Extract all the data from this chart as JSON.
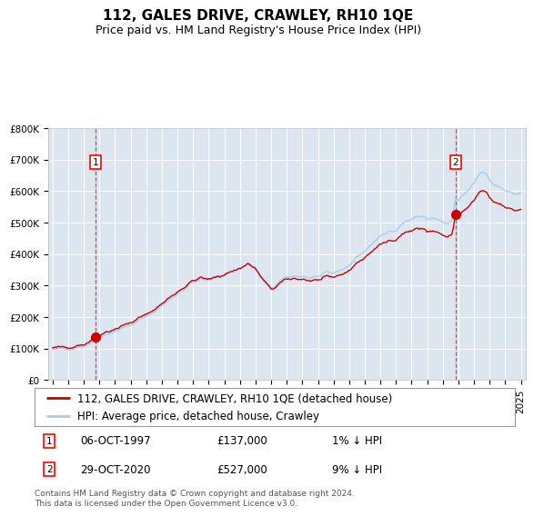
{
  "title": "112, GALES DRIVE, CRAWLEY, RH10 1QE",
  "subtitle": "Price paid vs. HM Land Registry's House Price Index (HPI)",
  "background_color": "#dce6f1",
  "plot_bg_color": "#dce6f1",
  "outer_bg_color": "#ffffff",
  "line1_color": "#cc0000",
  "line2_color": "#aaccee",
  "ylim": [
    0,
    800000
  ],
  "yticks": [
    0,
    100000,
    200000,
    300000,
    400000,
    500000,
    600000,
    700000,
    800000
  ],
  "ytick_labels": [
    "£0",
    "£100K",
    "£200K",
    "£300K",
    "£400K",
    "£500K",
    "£600K",
    "£700K",
    "£800K"
  ],
  "year_start": 1995,
  "year_end": 2025,
  "sale1_date": 1997.77,
  "sale1_price": 137000,
  "sale2_date": 2020.83,
  "sale2_price": 527000,
  "legend1": "112, GALES DRIVE, CRAWLEY, RH10 1QE (detached house)",
  "legend2": "HPI: Average price, detached house, Crawley",
  "annotation1_date": "06-OCT-1997",
  "annotation1_price": "£137,000",
  "annotation1_hpi": "1% ↓ HPI",
  "annotation2_date": "29-OCT-2020",
  "annotation2_price": "£527,000",
  "annotation2_hpi": "9% ↓ HPI",
  "footer": "Contains HM Land Registry data © Crown copyright and database right 2024.\nThis data is licensed under the Open Government Licence v3.0.",
  "title_fontsize": 11,
  "subtitle_fontsize": 9,
  "tick_fontsize": 7.5,
  "legend_fontsize": 8.5
}
